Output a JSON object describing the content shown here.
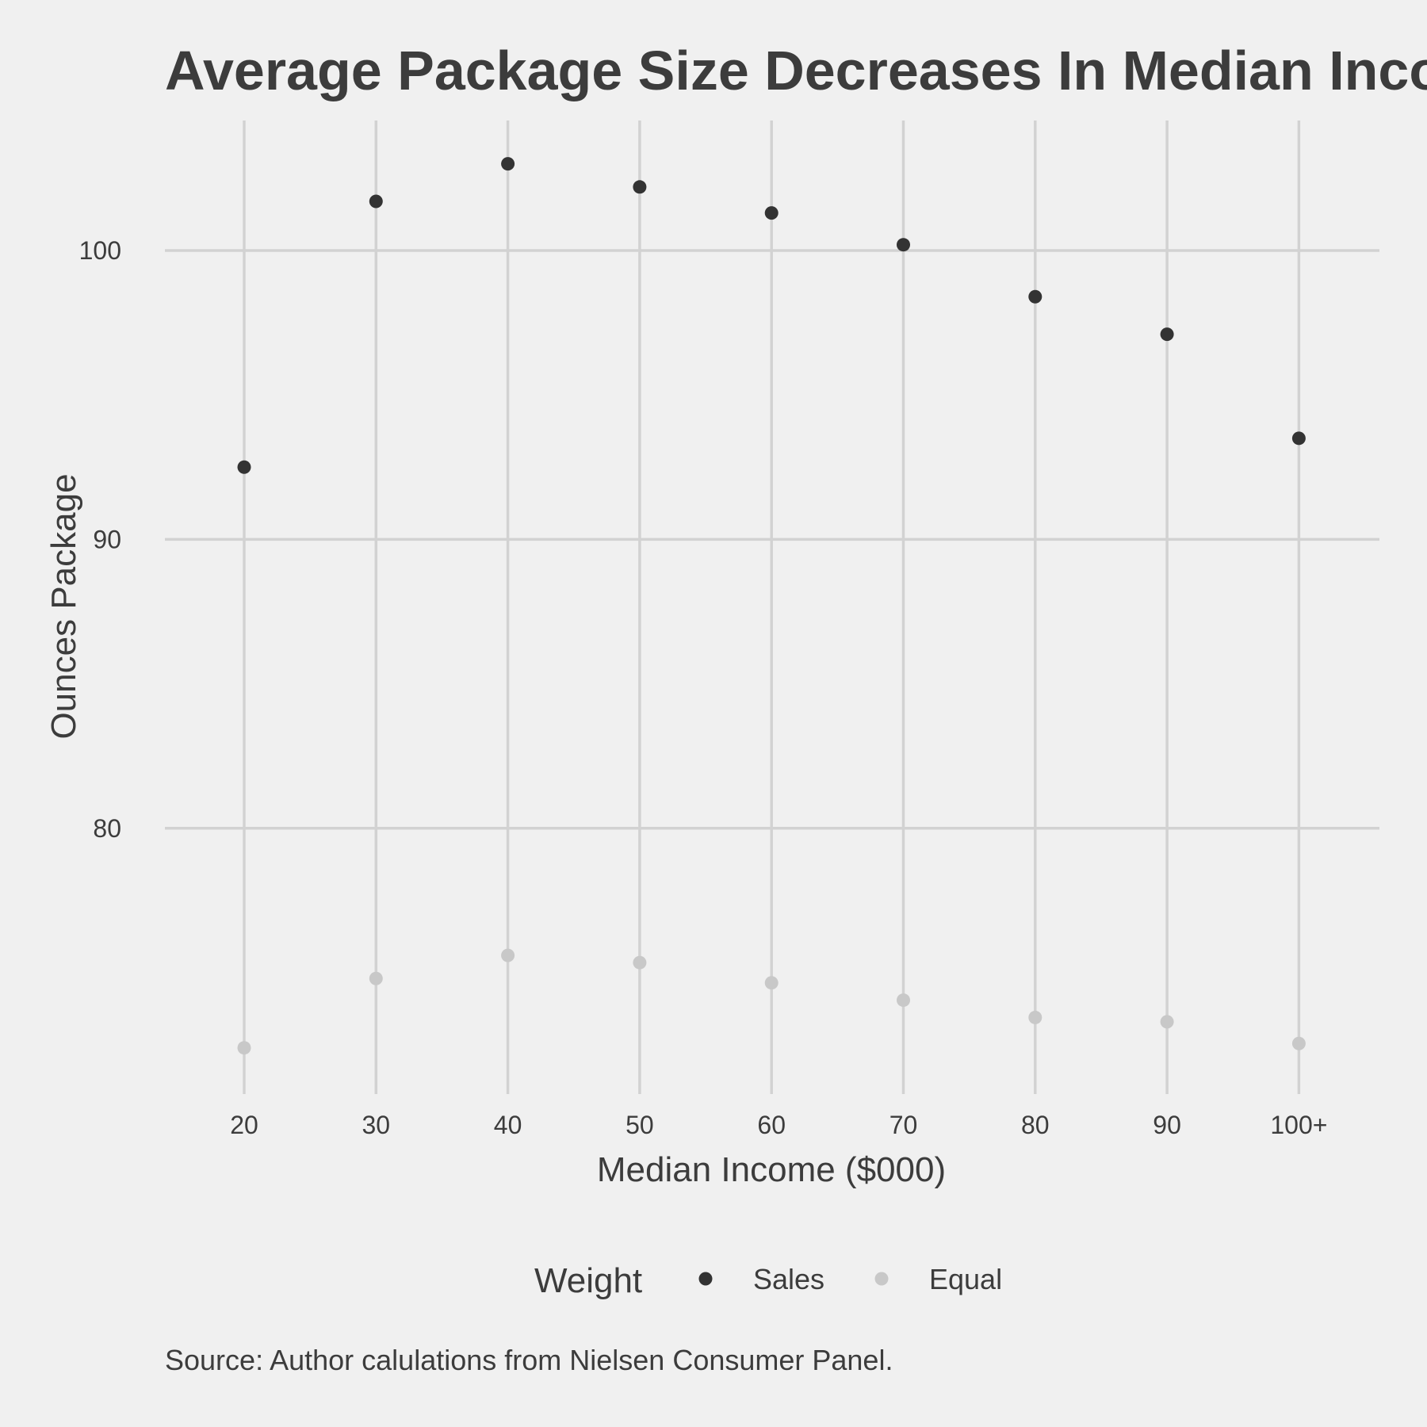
{
  "chart_data": {
    "type": "scatter",
    "title": "Average Package Size Decreases In Median Income",
    "xlabel": "Median Income ($000)",
    "ylabel": "Ounces Package",
    "categories": [
      "20",
      "30",
      "40",
      "50",
      "60",
      "70",
      "80",
      "90",
      "100+"
    ],
    "y_ticks": [
      80,
      90,
      100
    ],
    "ylim": [
      70.8,
      104.5
    ],
    "grid": true,
    "legend": {
      "title": "Weight",
      "position": "bottom"
    },
    "series": [
      {
        "name": "Sales",
        "color": "#333333",
        "values": [
          92.5,
          101.7,
          103.0,
          102.2,
          101.3,
          100.2,
          98.4,
          97.1,
          93.5
        ]
      },
      {
        "name": "Equal",
        "color": "#c8c8c8",
        "values": [
          72.4,
          74.8,
          75.6,
          75.35,
          74.65,
          74.05,
          73.45,
          73.3,
          72.55
        ]
      }
    ],
    "caption": "Source: Author calulations from Nielsen Consumer Panel."
  }
}
